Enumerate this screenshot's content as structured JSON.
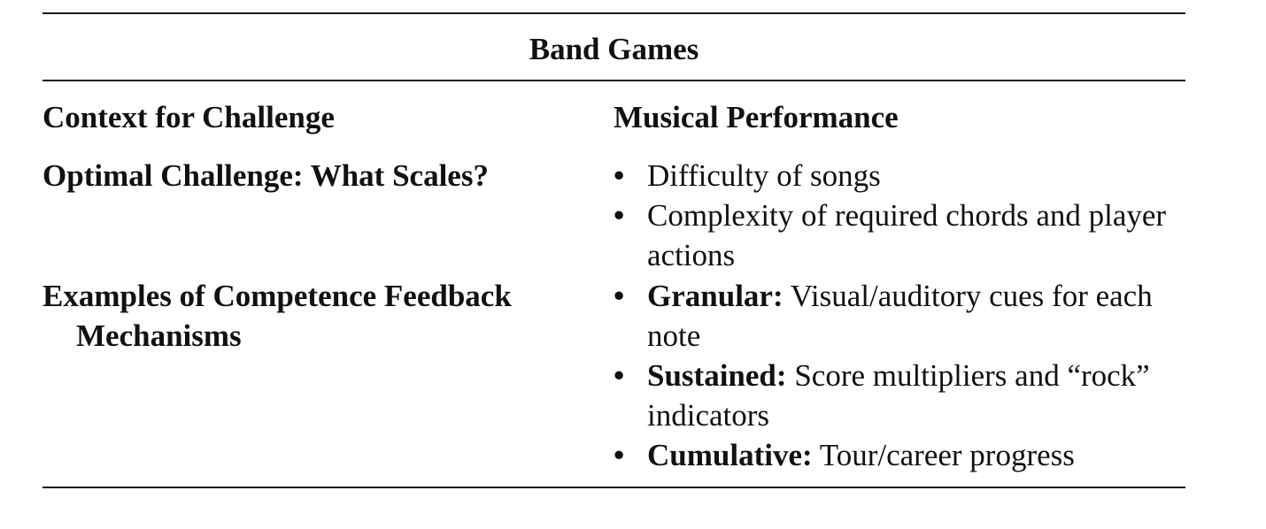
{
  "table": {
    "title": "Band Games",
    "header": {
      "left": "Context for Challenge",
      "right": "Musical Performance"
    },
    "rows": [
      {
        "label_line1": "Optimal Challenge: What Scales?",
        "label_line2": "",
        "bullets": [
          {
            "term": "",
            "text": "Difficulty of songs"
          },
          {
            "term": "",
            "text": "Complexity of required chords and player actions"
          }
        ]
      },
      {
        "label_line1": "Examples of Competence Feedback",
        "label_line2": "Mechanisms",
        "bullets": [
          {
            "term": "Granular:",
            "text": " Visual/auditory cues for each note"
          },
          {
            "term": "Sustained:",
            "text": " Score multipliers and “rock” indicators"
          },
          {
            "term": "Cumulative:",
            "text": " Tour/career progress"
          }
        ]
      }
    ],
    "bullet_glyph": "•"
  }
}
